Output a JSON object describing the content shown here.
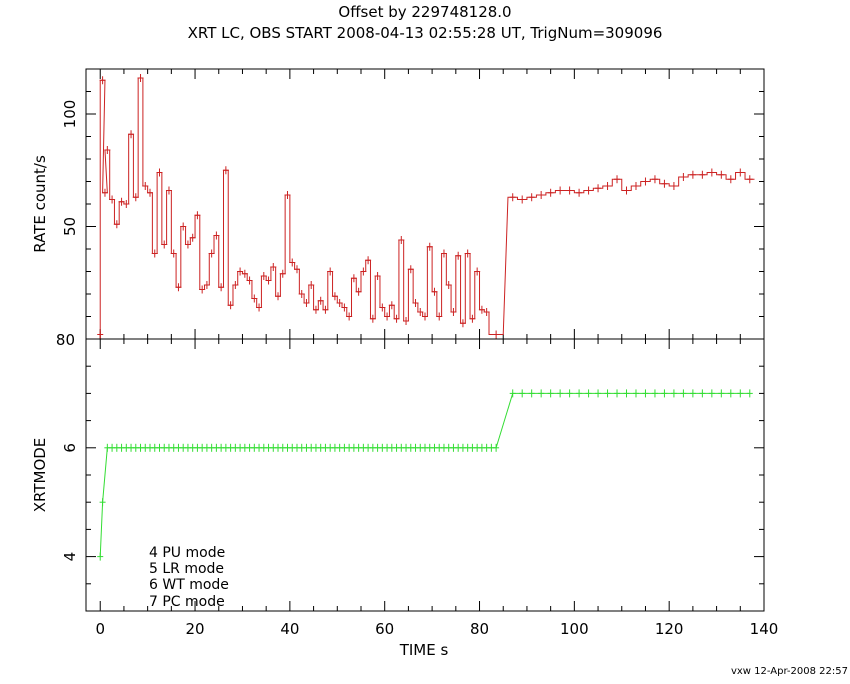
{
  "title_line1": "Offset by 229748128.0",
  "title_line2": "XRT LC, OBS START 2008-04-13 02:55:28 UT, TrigNum=309096",
  "footer": "vxw 12-Apr-2008 22:57",
  "colors": {
    "rate_series": "#cc2222",
    "mode_series": "#33dd33",
    "axes": "#000000"
  },
  "chart_data": [
    {
      "type": "line",
      "step": true,
      "panel": "top",
      "xlabel": "",
      "ylabel": "RATE  count/s",
      "xlim": [
        -3,
        140
      ],
      "ylim": [
        0,
        120
      ],
      "yticks_major": [
        50,
        100
      ],
      "ytick_labels": [
        "50",
        "100"
      ],
      "bottom_left_label": "80",
      "series": [
        {
          "x": [
            0.0,
            0.5,
            1.0,
            1.5,
            2.5,
            3.5,
            4.5,
            5.5,
            6.5,
            7.5,
            8.5,
            9.5,
            10.5,
            11.5,
            12.5,
            13.5,
            14.5,
            15.5,
            16.5,
            17.5,
            18.5,
            19.5,
            20.5,
            21.5,
            22.5,
            23.5,
            24.5,
            25.5,
            26.5,
            27.5,
            28.5,
            29.5,
            30.5,
            31.5,
            32.5,
            33.5,
            34.5,
            35.5,
            36.5,
            37.5,
            38.5,
            39.5,
            40.5,
            41.5,
            42.5,
            43.5,
            44.5,
            45.5,
            46.5,
            47.5,
            48.5,
            49.5,
            50.5,
            51.5,
            52.5,
            53.5,
            54.5,
            55.5,
            56.5,
            57.5,
            58.5,
            59.5,
            60.5,
            61.5,
            62.5,
            63.5,
            64.5,
            65.5,
            66.5,
            67.5,
            68.5,
            69.5,
            70.5,
            71.5,
            72.5,
            73.5,
            74.5,
            75.5,
            76.5,
            77.5,
            78.5,
            79.5,
            80.5,
            81.5,
            83.5,
            87.0,
            89.0,
            91.0,
            93.0,
            95.0,
            97.0,
            99.0,
            101.0,
            103.0,
            105.0,
            107.0,
            109.0,
            111.0,
            113.0,
            115.0,
            117.0,
            119.0,
            121.0,
            123.0,
            125.0,
            127.0,
            129.0,
            131.0,
            133.0,
            135.0,
            137.0
          ],
          "y": [
            2,
            115,
            65,
            84,
            62,
            51,
            61,
            60,
            91,
            63,
            116,
            68,
            65,
            38,
            74,
            42,
            66,
            38,
            23,
            50,
            42,
            45,
            55,
            22,
            24,
            38,
            46,
            23,
            75,
            15,
            24,
            30,
            29,
            26,
            18,
            14,
            28,
            26,
            32,
            19,
            29,
            64,
            34,
            31,
            20,
            16,
            24,
            13,
            17,
            13,
            30,
            19,
            16,
            14,
            10,
            27,
            21,
            30,
            35,
            9,
            28,
            14,
            10,
            15,
            9,
            44,
            8,
            31,
            16,
            12,
            10,
            41,
            21,
            10,
            38,
            24,
            12,
            37,
            7,
            38,
            9,
            30,
            13,
            12,
            2,
            63,
            62,
            63,
            64,
            65,
            66,
            66,
            65,
            66,
            67,
            68,
            71,
            66,
            68,
            70,
            71,
            69,
            68,
            72,
            73,
            73,
            74,
            73,
            71,
            74,
            71
          ],
          "xerr": [
            0,
            0.5,
            0.5,
            0.5,
            0.5,
            0.5,
            0.5,
            0.5,
            0.5,
            0.5,
            0.5,
            0.5,
            0.5,
            0.5,
            0.5,
            0.5,
            0.5,
            0.5,
            0.5,
            0.5,
            0.5,
            0.5,
            0.5,
            0.5,
            0.5,
            0.5,
            0.5,
            0.5,
            0.5,
            0.5,
            0.5,
            0.5,
            0.5,
            0.5,
            0.5,
            0.5,
            0.5,
            0.5,
            0.5,
            0.5,
            0.5,
            0.5,
            0.5,
            0.5,
            0.5,
            0.5,
            0.5,
            0.5,
            0.5,
            0.5,
            0.5,
            0.5,
            0.5,
            0.5,
            0.5,
            0.5,
            0.5,
            0.5,
            0.5,
            0.5,
            0.5,
            0.5,
            0.5,
            0.5,
            0.5,
            0.5,
            0.5,
            0.5,
            0.5,
            0.5,
            0.5,
            0.5,
            0.5,
            0.5,
            0.5,
            0.5,
            0.5,
            0.5,
            0.5,
            0.5,
            0.5,
            0.5,
            0.5,
            0.5,
            1.5,
            1.0,
            1.0,
            1.0,
            1.0,
            1.0,
            1.0,
            1.0,
            1.0,
            1.0,
            1.0,
            1.0,
            1.0,
            1.0,
            1.0,
            1.0,
            1.0,
            1.0,
            1.0,
            1.0,
            1.0,
            1.0,
            1.0,
            1.0,
            1.0,
            1.0,
            1.0
          ]
        }
      ]
    },
    {
      "type": "line",
      "step": true,
      "panel": "bottom",
      "xlabel": "TIME  s",
      "ylabel": "XRTMODE",
      "xlim": [
        -3,
        140
      ],
      "ylim": [
        3,
        8
      ],
      "xticks": [
        0,
        20,
        40,
        60,
        80,
        100,
        120,
        140
      ],
      "yticks": [
        4,
        6
      ],
      "annotations": [
        "4 PU mode",
        "5 LR mode",
        "6 WT mode",
        "7 PC mode"
      ],
      "series": [
        {
          "mode_levels": [
            {
              "x": [
                0.0
              ],
              "y": 4
            },
            {
              "x": [
                0.5
              ],
              "y": 5
            },
            {
              "x": [
                1.5,
                2.5,
                3.5,
                4.5,
                5.5,
                6.5,
                7.5,
                8.5,
                9.5,
                10.5,
                11.5,
                12.5,
                13.5,
                14.5,
                15.5,
                16.5,
                17.5,
                18.5,
                19.5,
                20.5,
                21.5,
                22.5,
                23.5,
                24.5,
                25.5,
                26.5,
                27.5,
                28.5,
                29.5,
                30.5,
                31.5,
                32.5,
                33.5,
                34.5,
                35.5,
                36.5,
                37.5,
                38.5,
                39.5,
                40.5,
                41.5,
                42.5,
                43.5,
                44.5,
                45.5,
                46.5,
                47.5,
                48.5,
                49.5,
                50.5,
                51.5,
                52.5,
                53.5,
                54.5,
                55.5,
                56.5,
                57.5,
                58.5,
                59.5,
                60.5,
                61.5,
                62.5,
                63.5,
                64.5,
                65.5,
                66.5,
                67.5,
                68.5,
                69.5,
                70.5,
                71.5,
                72.5,
                73.5,
                74.5,
                75.5,
                76.5,
                77.5,
                78.5,
                79.5,
                80.5,
                81.5,
                82.5,
                83.5
              ],
              "y": 6
            },
            {
              "x": [
                87,
                89,
                91,
                93,
                95,
                97,
                99,
                101,
                103,
                105,
                107,
                109,
                111,
                113,
                115,
                117,
                119,
                121,
                123,
                125,
                127,
                129,
                131,
                133,
                135,
                137
              ],
              "y": 7
            }
          ]
        }
      ]
    }
  ]
}
